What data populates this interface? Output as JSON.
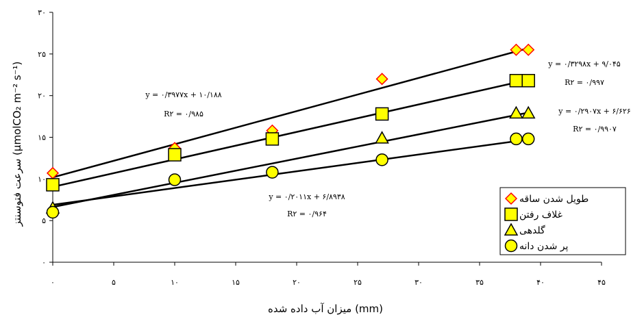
{
  "chart_data": {
    "type": "scatter",
    "xlabel": "میزان آب داده شده (mm)",
    "ylabel": "سرعت فتوسنتز (µmolCO₂ m⁻² s⁻¹)",
    "xlim": [
      0,
      45
    ],
    "ylim": [
      0,
      30
    ],
    "x_ticks": [
      0,
      5,
      10,
      15,
      20,
      25,
      30,
      35,
      40,
      45
    ],
    "y_ticks": [
      0,
      5,
      10,
      15,
      20,
      25,
      30
    ],
    "x_tick_labels": [
      "۰",
      "۵",
      "۱۰",
      "۱۵",
      "۲۰",
      "۲۵",
      "۳۰",
      "۳۵",
      "۴۰",
      "۴۵"
    ],
    "y_tick_labels": [
      "۰",
      "۵",
      "۱۰",
      "۱۵",
      "۲۰",
      "۲۵",
      "۳۰"
    ],
    "grid": false,
    "legend_position": "bottom-right",
    "series": [
      {
        "name": "طویل شدن ساقه",
        "marker": "diamond",
        "color": "#FF0000",
        "fill": "#FFFF00",
        "x": [
          0,
          10,
          18,
          27,
          38,
          39
        ],
        "y": [
          10.7,
          13.7,
          15.8,
          22.0,
          25.5,
          25.5
        ],
        "trend": {
          "slope": 0.3977,
          "intercept": 10.188
        },
        "equation": "y = ۰/۳۹۷۷x + ۱۰/۱۸۸",
        "r2": "R۲ = ۰/۹۸۵"
      },
      {
        "name": "غلاف رفتن",
        "marker": "square",
        "color": "#000000",
        "fill": "#FFFF00",
        "x": [
          0,
          10,
          18,
          27,
          38,
          39
        ],
        "y": [
          9.3,
          12.9,
          14.8,
          17.8,
          21.8,
          21.8
        ],
        "trend": {
          "slope": 0.3298,
          "intercept": 9.045
        },
        "equation": "y = ۰/۳۲۹۸x + ۹/۰۴۵",
        "r2": "R۲ = ۰/۹۹۷"
      },
      {
        "name": "گلدهی",
        "marker": "triangle",
        "color": "#000000",
        "fill": "#FFFF00",
        "x": [
          0,
          27,
          38,
          39
        ],
        "y": [
          6.5,
          14.9,
          17.9,
          17.9
        ],
        "trend": {
          "slope": 0.2907,
          "intercept": 6.626
        },
        "equation": "y = ۰/۲۹۰۷x + ۶/۶۲۶",
        "r2": "R۲ = ۰/۹۹۰۷"
      },
      {
        "name": "پر شدن دانه",
        "marker": "circle",
        "color": "#000000",
        "fill": "#FFFF00",
        "x": [
          0,
          10,
          18,
          27,
          38,
          39
        ],
        "y": [
          6.0,
          9.9,
          10.8,
          12.3,
          14.8,
          14.8
        ],
        "trend": {
          "slope": 0.2011,
          "intercept": 6.8938
        },
        "equation": "y = ۰/۲۰۱۱x + ۶/۸۹۳۸",
        "r2": "R۲ = ۰/۹۶۴"
      }
    ]
  }
}
